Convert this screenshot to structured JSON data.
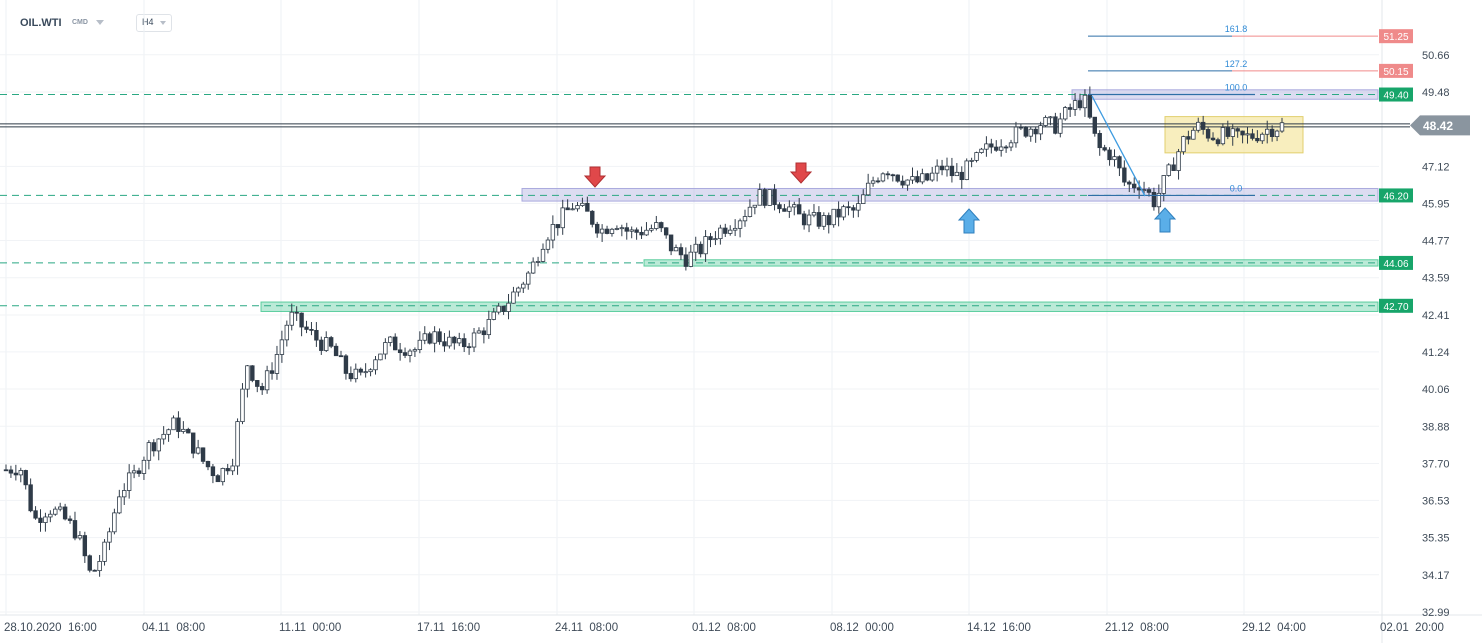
{
  "header": {
    "symbol": "OIL.WTI",
    "market": "CMD",
    "timeframe": "H4"
  },
  "colors": {
    "bull": "#ffffff",
    "bear": "#2f3b48",
    "wick": "#2f3b48",
    "support_zone": "#3cc48c",
    "resistance_zone": "#9a9ad8",
    "fib_line_blue": "#2f6fa6",
    "fib_line_red": "#f08a8a",
    "fib_label_red": "#ef8a8a",
    "level_label_green": "#17a56a",
    "current_price_bg": "#8a959f",
    "arrow_down": "#e0484a",
    "arrow_up": "#5aaee8",
    "consolidation_box": "#f5e7a3"
  },
  "chart_data": {
    "type": "candlestick",
    "instrument": "OIL.WTI",
    "timeframe": "H4",
    "y_axis": {
      "ticks": [
        "50.66",
        "49.48",
        "47.12",
        "45.95",
        "44.77",
        "43.59",
        "42.41",
        "41.24",
        "40.06",
        "38.88",
        "37.70",
        "36.53",
        "35.35",
        "34.17",
        "32.99"
      ],
      "range": [
        32.7,
        51.8
      ]
    },
    "x_axis": {
      "labels": [
        "28.10.2020  16:00",
        "04.11  08:00",
        "11.11  00:00",
        "17.11  16:00",
        "24.11  08:00",
        "01.12  08:00",
        "08.12  00:00",
        "14.12  16:00",
        "21.12  08:00",
        "29.12  04:00",
        "02.01  20:00"
      ]
    },
    "current_price": "48.42",
    "horizontal_levels": [
      {
        "value": 49.4,
        "label": "49.40",
        "style": "dashed"
      },
      {
        "value": 46.2,
        "label": "46.20",
        "style": "dashed"
      },
      {
        "value": 44.06,
        "label": "44.06",
        "style": "dashed"
      },
      {
        "value": 42.7,
        "label": "42.70",
        "style": "dashed"
      }
    ],
    "fibonacci": [
      {
        "ratio": "161.8",
        "value": 51.25,
        "label": "51.25"
      },
      {
        "ratio": "127.2",
        "value": 50.15,
        "label": "50.15"
      },
      {
        "ratio": "100.0",
        "value": 49.4,
        "label": "49.40"
      },
      {
        "ratio": "0.0",
        "value": 46.2,
        "label": "46.20"
      }
    ],
    "close_path": [
      {
        "x": "28.10.2020 16:00",
        "y": 37.5
      },
      {
        "y": 37.6
      },
      {
        "y": 35.9
      },
      {
        "y": 36.3
      },
      {
        "y": 36.0
      },
      {
        "y": 35.5
      },
      {
        "y": 34.1
      },
      {
        "y": 35.0
      },
      {
        "y": 36.8
      },
      {
        "y": 37.3
      },
      {
        "x": "04.11 08:00",
        "y": 38.2
      },
      {
        "y": 38.6
      },
      {
        "y": 39.0
      },
      {
        "y": 38.4
      },
      {
        "y": 37.7
      },
      {
        "y": 37.3
      },
      {
        "y": 37.9
      },
      {
        "y": 40.9
      },
      {
        "y": 40.0
      },
      {
        "y": 41.0
      },
      {
        "x": "11.11 00:00",
        "y": 42.4
      },
      {
        "y": 42.0
      },
      {
        "y": 41.6
      },
      {
        "y": 41.3
      },
      {
        "y": 40.6
      },
      {
        "y": 40.4
      },
      {
        "y": 41.1
      },
      {
        "y": 41.5
      },
      {
        "y": 41.4
      },
      {
        "y": 41.3
      },
      {
        "x": "17.11 16:00",
        "y": 41.8
      },
      {
        "y": 41.6
      },
      {
        "y": 41.4
      },
      {
        "y": 41.7
      },
      {
        "y": 42.1
      },
      {
        "y": 42.6
      },
      {
        "y": 43.2
      },
      {
        "y": 43.8
      },
      {
        "y": 44.9
      },
      {
        "y": 45.4
      },
      {
        "x": "24.11 08:00",
        "y": 45.9
      },
      {
        "y": 45.6
      },
      {
        "y": 45.1
      },
      {
        "y": 45.4
      },
      {
        "y": 45.0
      },
      {
        "y": 45.1
      },
      {
        "y": 45.2
      },
      {
        "y": 44.5
      },
      {
        "y": 44.2
      },
      {
        "y": 44.5
      },
      {
        "x": "01.12 08:00",
        "y": 45.0
      },
      {
        "y": 45.3
      },
      {
        "y": 45.6
      },
      {
        "y": 46.2
      },
      {
        "y": 46.1
      },
      {
        "y": 45.9
      },
      {
        "y": 45.5
      },
      {
        "y": 45.4
      },
      {
        "y": 45.4
      },
      {
        "y": 45.7
      },
      {
        "x": "08.12 00:00",
        "y": 45.7
      },
      {
        "y": 46.6
      },
      {
        "y": 47.1
      },
      {
        "y": 46.8
      },
      {
        "y": 46.6
      },
      {
        "y": 46.7
      },
      {
        "y": 47.1
      },
      {
        "y": 46.8
      },
      {
        "y": 47.1
      },
      {
        "y": 47.6
      },
      {
        "x": "14.12 16:00",
        "y": 47.9
      },
      {
        "y": 48.1
      },
      {
        "y": 48.3
      },
      {
        "y": 48.5
      },
      {
        "y": 48.4
      },
      {
        "y": 48.9
      },
      {
        "y": 49.3
      },
      {
        "y": 47.7
      },
      {
        "y": 47.5
      },
      {
        "y": 46.5
      },
      {
        "x": "21.12 08:00",
        "y": 46.6
      },
      {
        "y": 46.0
      },
      {
        "y": 46.9
      },
      {
        "y": 47.9
      },
      {
        "y": 48.4
      },
      {
        "y": 48.1
      },
      {
        "y": 48.1
      },
      {
        "y": 48.0
      },
      {
        "y": 48.1
      },
      {
        "y": 48.3
      },
      {
        "x": "29.12 04:00",
        "y": 48.42
      }
    ]
  }
}
